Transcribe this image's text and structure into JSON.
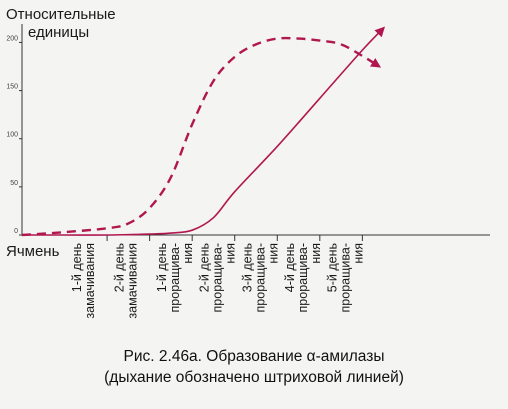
{
  "chart_data": {
    "type": "line",
    "ylabel_line1": "Относительные",
    "ylabel_line2": "единицы",
    "xlabel": "Ячмень",
    "yticks": [
      0,
      50,
      100,
      150,
      200
    ],
    "ylim": [
      0,
      215
    ],
    "xlim": [
      0,
      11
    ],
    "categories": [
      {
        "line1": "1-й день",
        "line2": "замачивания"
      },
      {
        "line1": "2-й день",
        "line2": "замачивания"
      },
      {
        "line1": "1-й день",
        "line2": "проращива-",
        "line3": "ния"
      },
      {
        "line1": "2-й день",
        "line2": "проращива-",
        "line3": "ния"
      },
      {
        "line1": "3-й день",
        "line2": "проращива-",
        "line3": "ния"
      },
      {
        "line1": "4-й день",
        "line2": "проращива-",
        "line3": "ния"
      },
      {
        "line1": "5-й день",
        "line2": "проращива-",
        "line3": "ния"
      }
    ],
    "category_x": [
      2,
      3,
      4,
      5,
      6,
      7,
      8
    ],
    "series": [
      {
        "style": "solid",
        "color": "#b0174f",
        "arrow": true,
        "x": [
          0,
          1,
          2,
          3,
          3.5,
          4,
          4.5,
          5,
          6,
          7,
          8,
          8.5
        ],
        "y": [
          0,
          0,
          0,
          1,
          2,
          5,
          18,
          45,
          92,
          142,
          192,
          215
        ]
      },
      {
        "style": "dashed",
        "color": "#b0174f",
        "arrow": true,
        "x": [
          0,
          1,
          2,
          2.5,
          3,
          3.5,
          4,
          4.5,
          5,
          5.5,
          6,
          6.5,
          7,
          7.5,
          8,
          8.4
        ],
        "y": [
          0,
          3,
          7,
          12,
          28,
          60,
          115,
          160,
          185,
          198,
          204,
          204,
          202,
          198,
          186,
          175
        ]
      }
    ]
  },
  "caption": {
    "line1": "Рис. 2.46а. Образование α-амилазы",
    "line2": "(дыхание обозначено штриховой линией)"
  }
}
